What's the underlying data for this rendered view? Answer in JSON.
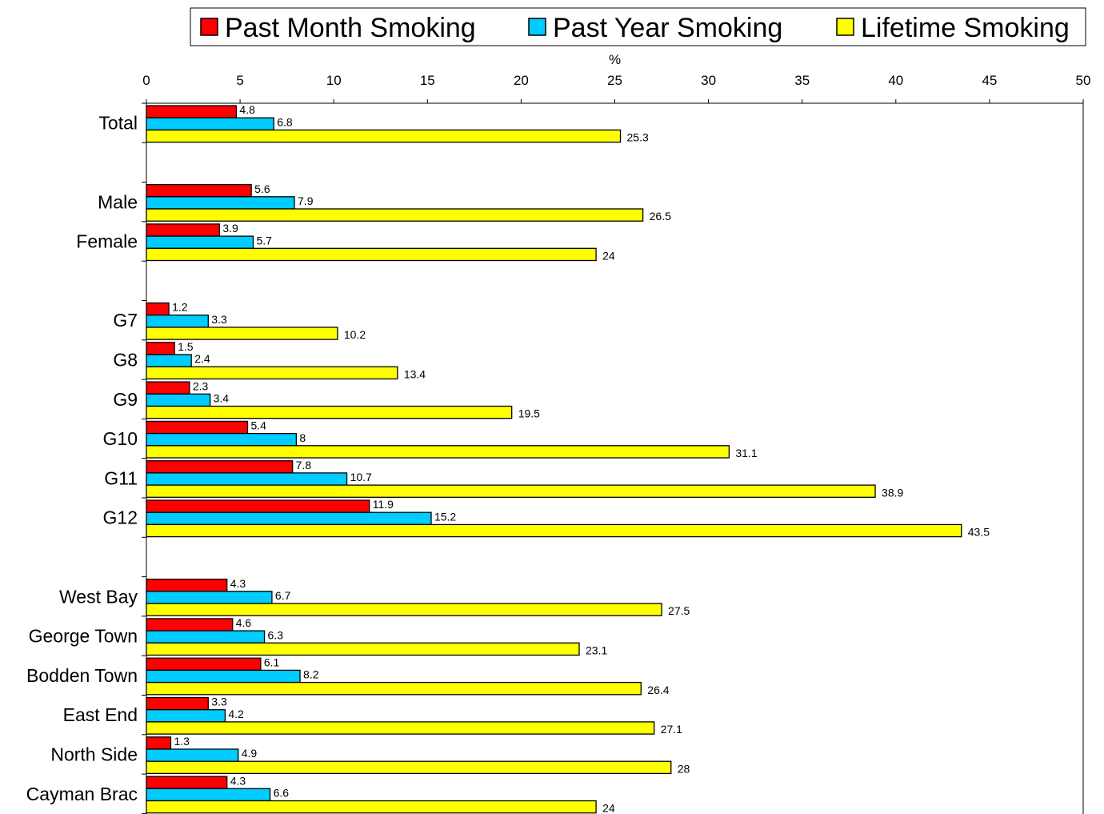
{
  "chart_data": {
    "type": "bar",
    "orientation": "horizontal",
    "xlabel": "%",
    "xlim": [
      0,
      50
    ],
    "xticks": [
      "0",
      "5",
      "10",
      "15",
      "20",
      "25",
      "30",
      "35",
      "40",
      "45",
      "50"
    ],
    "grid": false,
    "legend_position": "top",
    "categories": [
      "Total",
      "Male",
      "Female",
      "G7",
      "G8",
      "G9",
      "G10",
      "G11",
      "G12",
      "West Bay",
      "George Town",
      "Bodden Town",
      "East End",
      "North Side",
      "Cayman Brac"
    ],
    "series": [
      {
        "name": "Past Month Smoking",
        "color": "#ff0000",
        "values": [
          4.8,
          5.6,
          3.9,
          1.2,
          1.5,
          2.3,
          5.4,
          7.8,
          11.9,
          4.3,
          4.6,
          6.1,
          3.3,
          1.3,
          4.3
        ]
      },
      {
        "name": "Past Year Smoking",
        "color": "#00ccff",
        "values": [
          6.8,
          7.9,
          5.7,
          3.3,
          2.4,
          3.4,
          8,
          10.7,
          15.2,
          6.7,
          6.3,
          8.2,
          4.2,
          4.9,
          6.6
        ]
      },
      {
        "name": "Lifetime Smoking",
        "color": "#ffff00",
        "values": [
          25.3,
          26.5,
          24,
          10.2,
          13.4,
          19.5,
          31.1,
          38.9,
          43.5,
          27.5,
          23.1,
          26.4,
          27.1,
          28,
          24
        ]
      }
    ],
    "value_labels": [
      [
        "4.8",
        "5.6",
        "3.9",
        "1.2",
        "1.5",
        "2.3",
        "5.4",
        "7.8",
        "11.9",
        "4.3",
        "4.6",
        "6.1",
        "3.3",
        "1.3",
        "4.3"
      ],
      [
        "6.8",
        "7.9",
        "5.7",
        "3.3",
        "2.4",
        "3.4",
        "8",
        "10.7",
        "15.2",
        "6.7",
        "6.3",
        "8.2",
        "4.2",
        "4.9",
        "6.6"
      ],
      [
        "25.3",
        "26.5",
        "24",
        "10.2",
        "13.4",
        "19.5",
        "31.1",
        "38.9",
        "43.5",
        "27.5",
        "23.1",
        "26.4",
        "27.1",
        "28",
        "24"
      ]
    ]
  }
}
